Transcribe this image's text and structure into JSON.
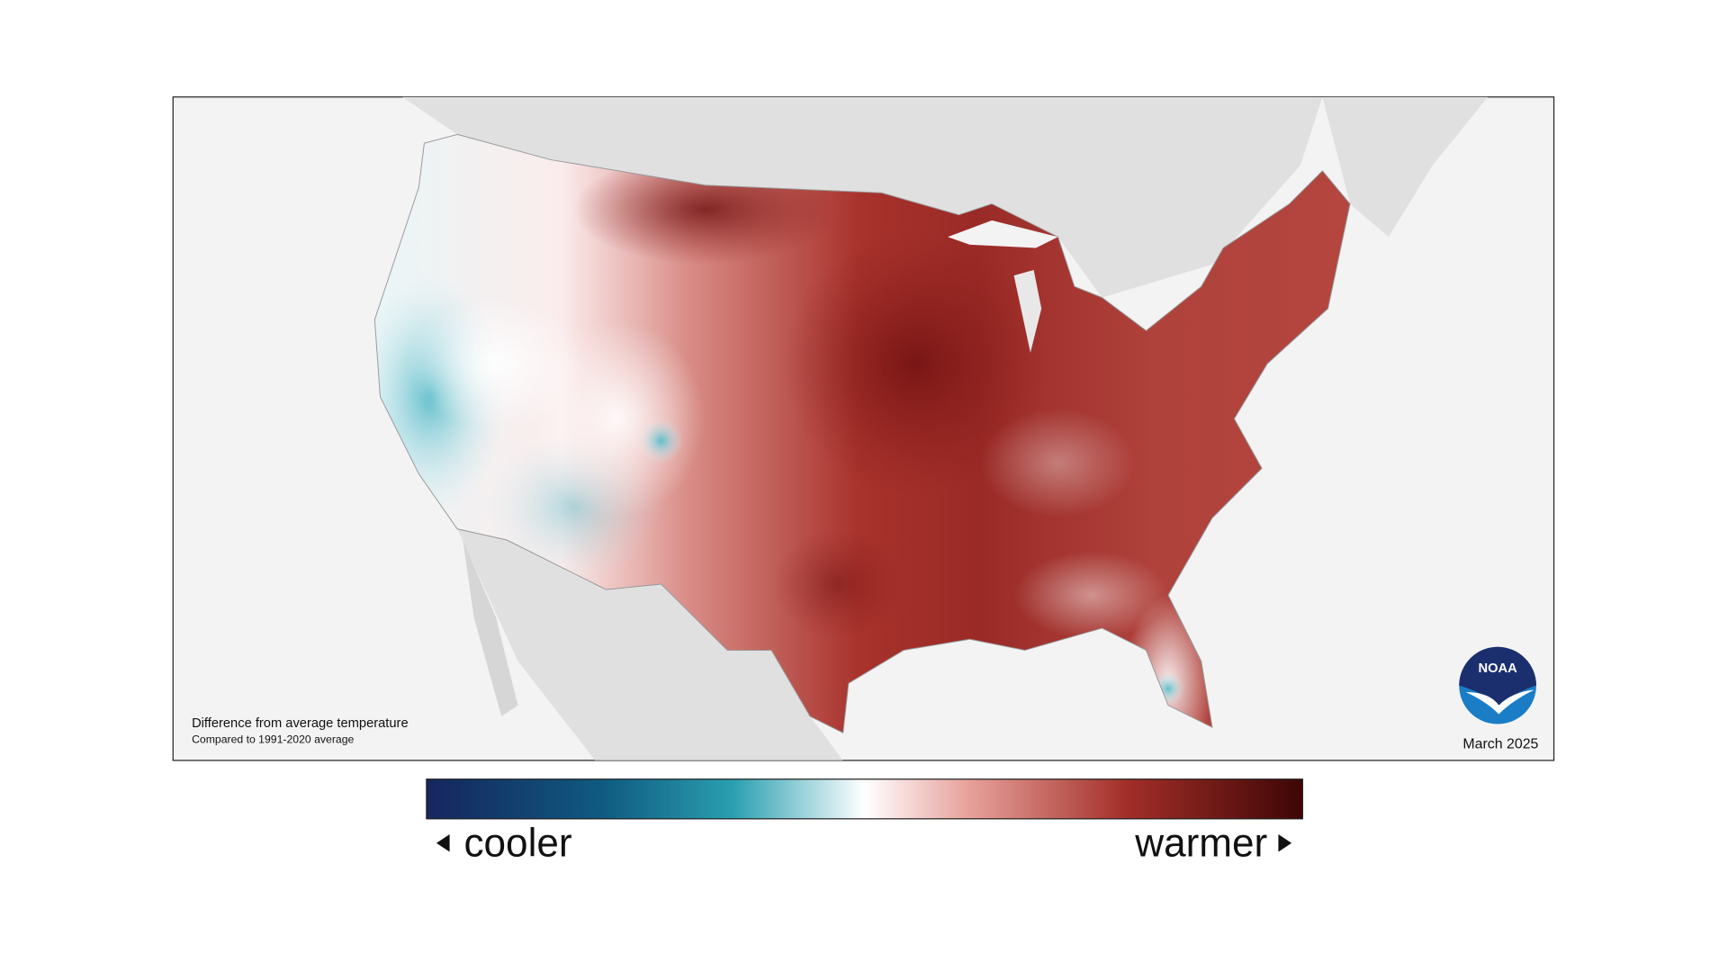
{
  "map": {
    "caption_title": "Difference from average temperature",
    "caption_subtitle": "Compared to 1991-2020 average",
    "date": "March 2025",
    "logo": "NOAA",
    "legend": {
      "low_label": "cooler",
      "high_label": "warmer"
    }
  }
}
